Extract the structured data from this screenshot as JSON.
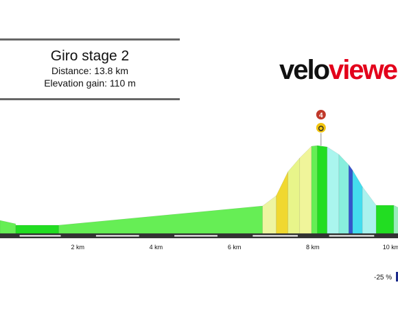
{
  "header": {
    "title": "Giro stage 2",
    "distance": "Distance: 13.8 km",
    "elevation_gain": "Elevation gain: 110 m"
  },
  "logo": {
    "part1": "velo",
    "part2": "viewer"
  },
  "marker": {
    "label": "4",
    "icon": "stopwatch-icon",
    "km": 8.0
  },
  "legend": {
    "min_label": "-25 %",
    "min_color": "#1a2a8a"
  },
  "colors": {
    "bar": "#333333",
    "marker_red": "#c0392b",
    "marker_yellow": "#f1c40f"
  },
  "chart_data": {
    "type": "area",
    "xlabel": "",
    "ylabel": "",
    "x_ticks": [
      {
        "km": 2,
        "label": "2 km"
      },
      {
        "km": 4,
        "label": "4 km"
      },
      {
        "km": 6,
        "label": "6 km"
      },
      {
        "km": 8,
        "label": "8 km"
      },
      {
        "km": 10,
        "label": "10 km"
      }
    ],
    "segments": [
      {
        "start_km": 0.0,
        "end_km": 0.4,
        "start_h": 19,
        "end_h": 14,
        "color": "#66ee55"
      },
      {
        "start_km": 0.4,
        "end_km": 1.5,
        "start_h": 12,
        "end_h": 12,
        "color": "#22dd22"
      },
      {
        "start_km": 1.5,
        "end_km": 6.7,
        "start_h": 12,
        "end_h": 40,
        "color": "#66ee55"
      },
      {
        "start_km": 6.7,
        "end_km": 7.05,
        "start_h": 40,
        "end_h": 55,
        "color": "#eef5a0"
      },
      {
        "start_km": 7.05,
        "end_km": 7.35,
        "start_h": 55,
        "end_h": 90,
        "color": "#f0d830"
      },
      {
        "start_km": 7.35,
        "end_km": 7.65,
        "start_h": 90,
        "end_h": 110,
        "color": "#e8f58a"
      },
      {
        "start_km": 7.65,
        "end_km": 7.95,
        "start_h": 110,
        "end_h": 127,
        "color": "#f0f59a"
      },
      {
        "start_km": 7.95,
        "end_km": 8.1,
        "start_h": 127,
        "end_h": 128,
        "color": "#66ee55"
      },
      {
        "start_km": 8.1,
        "end_km": 8.35,
        "start_h": 128,
        "end_h": 126,
        "color": "#22dd22"
      },
      {
        "start_km": 8.35,
        "end_km": 8.65,
        "start_h": 126,
        "end_h": 115,
        "color": "#aaf5ee"
      },
      {
        "start_km": 8.65,
        "end_km": 8.9,
        "start_h": 115,
        "end_h": 100,
        "color": "#88eedd"
      },
      {
        "start_km": 8.9,
        "end_km": 9.0,
        "start_h": 100,
        "end_h": 92,
        "color": "#3355cc"
      },
      {
        "start_km": 9.0,
        "end_km": 9.25,
        "start_h": 92,
        "end_h": 68,
        "color": "#44ddee"
      },
      {
        "start_km": 9.25,
        "end_km": 9.6,
        "start_h": 68,
        "end_h": 41,
        "color": "#aaf2ee"
      },
      {
        "start_km": 9.6,
        "end_km": 10.05,
        "start_h": 41,
        "end_h": 41,
        "color": "#22dd22"
      },
      {
        "start_km": 10.05,
        "end_km": 10.5,
        "start_h": 41,
        "end_h": 28,
        "color": "#99eebb"
      },
      {
        "start_km": 10.5,
        "end_km": 11.3,
        "start_h": 28,
        "end_h": 46,
        "color": "#66ee55"
      }
    ]
  }
}
